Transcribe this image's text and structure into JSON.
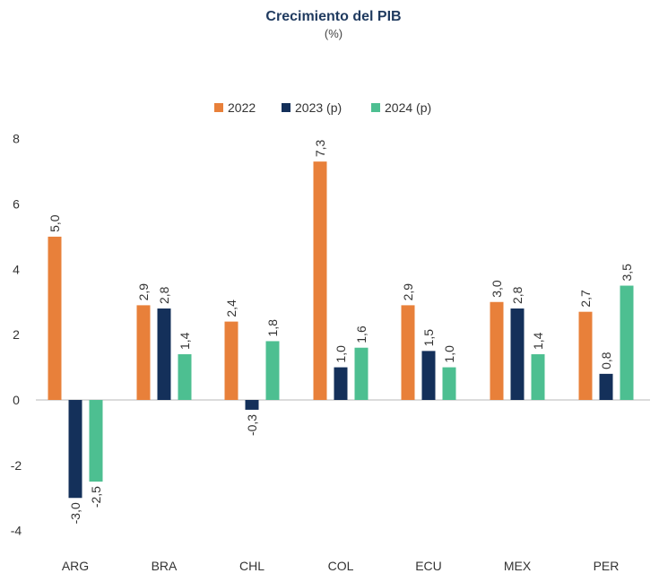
{
  "chart_data": {
    "type": "bar",
    "title": "Crecimiento del PIB",
    "subtitle": "(%)",
    "categories": [
      "ARG",
      "BRA",
      "CHL",
      "COL",
      "ECU",
      "MEX",
      "PER"
    ],
    "series": [
      {
        "name": "2022",
        "color": "#e8803a",
        "values": [
          5.0,
          2.9,
          2.4,
          7.3,
          2.9,
          3.0,
          2.7
        ],
        "labels": [
          "5,0",
          "2,9",
          "2,4",
          "7,3",
          "2,9",
          "3,0",
          "2,7"
        ]
      },
      {
        "name": "2023 (p)",
        "color": "#14305a",
        "values": [
          -3.0,
          2.8,
          -0.3,
          1.0,
          1.5,
          2.8,
          0.8
        ],
        "labels": [
          "-3,0",
          "2,8",
          "-0,3",
          "1,0",
          "1,5",
          "2,8",
          "0,8"
        ]
      },
      {
        "name": "2024 (p)",
        "color": "#4dbf91",
        "values": [
          -2.5,
          1.4,
          1.8,
          1.6,
          1.0,
          1.4,
          3.5
        ],
        "labels": [
          "-2,5",
          "1,4",
          "1,8",
          "1,6",
          "1,0",
          "1,4",
          "3,5"
        ]
      }
    ],
    "yticks": [
      8,
      6,
      4,
      2,
      0,
      -2,
      -4
    ],
    "ylim": [
      -4,
      8
    ],
    "legend": "top-center",
    "grid": false,
    "xlabel": "",
    "ylabel": ""
  }
}
